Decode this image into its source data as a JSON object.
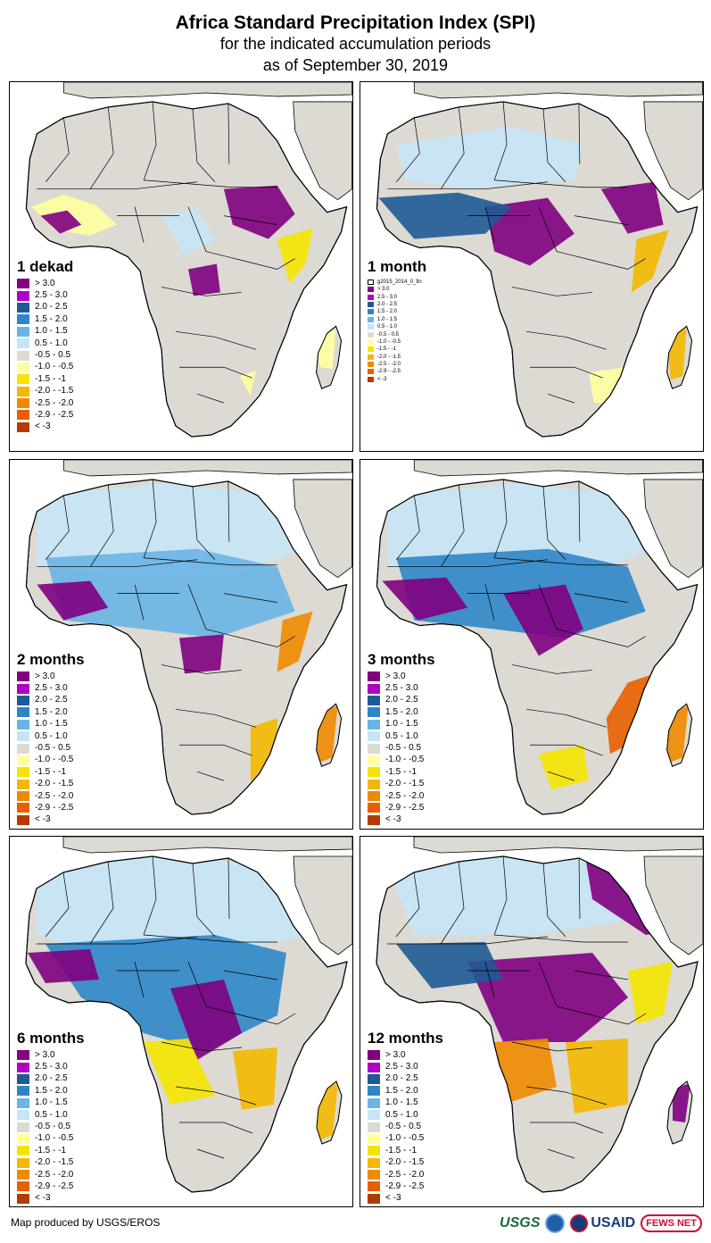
{
  "header": {
    "title": "Africa Standard Precipitation Index (SPI)",
    "subtitle": "for the indicated accumulation periods",
    "date_line": "as of September 30, 2019"
  },
  "legend_classes": [
    {
      "label": "> 3.0",
      "color": "#800080"
    },
    {
      "label": "2.5 - 3.0",
      "color": "#b000c8"
    },
    {
      "label": "2.0 - 2.5",
      "color": "#1f5a96"
    },
    {
      "label": "1.5 - 2.0",
      "color": "#2e86c8"
    },
    {
      "label": "1.0 - 1.5",
      "color": "#6ab4e6"
    },
    {
      "label": "0.5 - 1.0",
      "color": "#c6e4f6"
    },
    {
      "label": "-0.5 - 0.5",
      "color": "#dcdad2"
    },
    {
      "label": "-1.0 - -0.5",
      "color": "#ffffa0"
    },
    {
      "label": "-1.5 - -1",
      "color": "#f5e400"
    },
    {
      "label": "-2.0 - -1.5",
      "color": "#f3b800"
    },
    {
      "label": "-2.5 - -2.0",
      "color": "#ef8a00"
    },
    {
      "label": "-2.9 - -2.5",
      "color": "#e85f00"
    },
    {
      "label": "< -3",
      "color": "#b43c00"
    }
  ],
  "legend_extra_label": "g2015_2014_0_fin",
  "panels": [
    {
      "label": "1 dekad"
    },
    {
      "label": "1 month"
    },
    {
      "label": "2 months"
    },
    {
      "label": "3 months"
    },
    {
      "label": "6 months"
    },
    {
      "label": "12 months"
    }
  ],
  "footer": {
    "credit": "Map produced by USGS/EROS",
    "logos": [
      "USGS",
      "NOAA",
      "USAID",
      "FEWS NET"
    ]
  },
  "colors": {
    "ocean": "#ffffff",
    "land_neutral": "#dcdad2",
    "borders": "#000000"
  }
}
